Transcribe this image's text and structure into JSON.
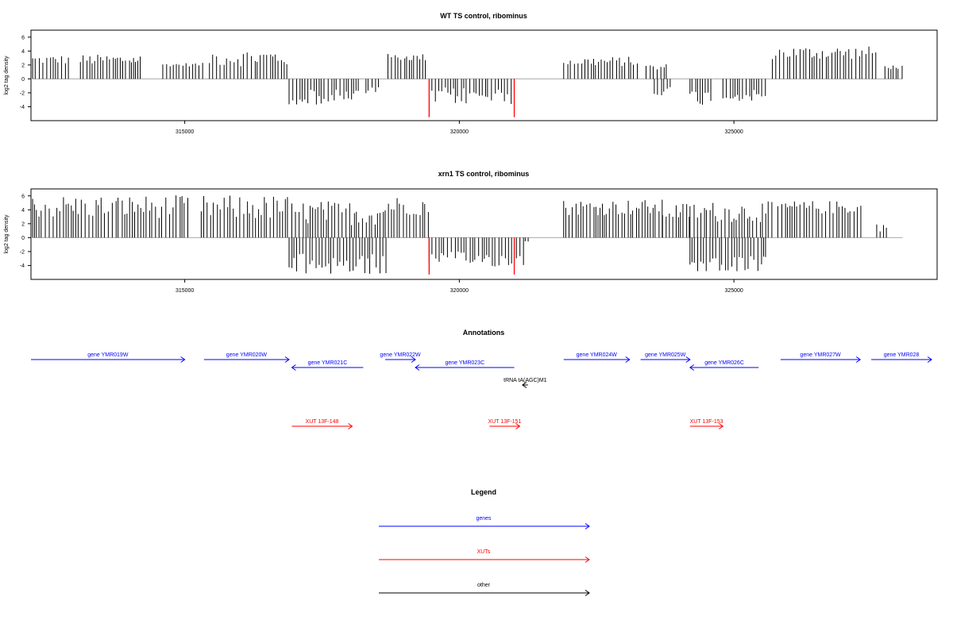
{
  "chart_data": [
    {
      "type": "bar",
      "title": "WT TS control, ribominus",
      "ylabel": "log2 tag density",
      "xlim": [
        312200,
        328700
      ],
      "ylim": [
        -6,
        7
      ],
      "yticks": [
        -4,
        -2,
        0,
        2,
        4,
        6
      ],
      "xticks": [
        315000,
        320000,
        325000
      ],
      "colors": {
        "bars": "#000000",
        "highlight": "#ff0000",
        "baseline": "#aaaaaa"
      },
      "plus_segments": [
        [
          312230,
          312900,
          2.1,
          3.4
        ],
        [
          313100,
          314200,
          2.0,
          3.5
        ],
        [
          314600,
          315350,
          1.8,
          2.3
        ],
        [
          315450,
          316900,
          1.8,
          4.3
        ],
        [
          318700,
          319450,
          2.6,
          3.6
        ],
        [
          321900,
          323300,
          1.8,
          3.2
        ],
        [
          323400,
          323800,
          1.0,
          2.2
        ],
        [
          325700,
          327600,
          2.8,
          4.7
        ],
        [
          327750,
          328100,
          1.4,
          2.0
        ]
      ],
      "minus_segments": [
        [
          316900,
          318200,
          -1.5,
          -3.7
        ],
        [
          318300,
          318550,
          -1.2,
          -2.2
        ],
        [
          319500,
          321000,
          -1.2,
          -3.7
        ],
        [
          323550,
          323900,
          -1.0,
          -2.4
        ],
        [
          324200,
          324600,
          -1.5,
          -3.8
        ],
        [
          324800,
          325600,
          -1.6,
          -3.2
        ]
      ],
      "highlight_bars": [
        [
          319450,
          -5.5
        ],
        [
          321000,
          -5.5
        ]
      ]
    },
    {
      "type": "bar",
      "title": "xrn1 TS control, ribominus",
      "ylabel": "log2 tag density",
      "xlim": [
        312200,
        328700
      ],
      "ylim": [
        -6,
        7
      ],
      "yticks": [
        -4,
        -2,
        0,
        2,
        4,
        6
      ],
      "xticks": [
        315000,
        320000,
        325000
      ],
      "colors": {
        "bars": "#000000",
        "highlight": "#ff0000",
        "baseline": "#aaaaaa"
      },
      "plus_segments": [
        [
          312230,
          315100,
          2.8,
          6.1
        ],
        [
          315300,
          316900,
          2.5,
          6.1
        ],
        [
          316950,
          318650,
          1.8,
          5.3
        ],
        [
          318650,
          319450,
          3.2,
          6.0
        ],
        [
          321900,
          323700,
          3.2,
          5.5
        ],
        [
          323700,
          324200,
          2.5,
          5.0
        ],
        [
          324200,
          325700,
          2.2,
          5.2
        ],
        [
          325800,
          327350,
          3.4,
          5.3
        ],
        [
          327600,
          327800,
          0.8,
          2.3
        ]
      ],
      "minus_segments": [
        [
          316900,
          318700,
          -2.3,
          -5.4
        ],
        [
          319450,
          321200,
          -2.0,
          -4.2
        ],
        [
          321200,
          321300,
          -0.4,
          -0.6
        ],
        [
          324200,
          325600,
          -2.6,
          -4.9
        ]
      ],
      "highlight_bars": [
        [
          319450,
          -5.3
        ],
        [
          321000,
          -5.3
        ]
      ]
    }
  ],
  "annotations": {
    "title": "Annotations",
    "items": [
      {
        "label": "gene YMR019W",
        "start": 312200,
        "end": 315000,
        "dir": "+",
        "row": 0,
        "color": "#0000ff"
      },
      {
        "label": "gene YMR020W",
        "start": 315350,
        "end": 316900,
        "dir": "+",
        "row": 0,
        "color": "#0000ff"
      },
      {
        "label": "gene YMR021C",
        "start": 316950,
        "end": 318250,
        "dir": "-",
        "row": 1,
        "color": "#0000ff"
      },
      {
        "label": "gene YMR022W",
        "start": 318650,
        "end": 319200,
        "dir": "+",
        "row": 0,
        "color": "#0000ff"
      },
      {
        "label": "gene YMR023C",
        "start": 319200,
        "end": 321000,
        "dir": "-",
        "row": 1,
        "color": "#0000ff"
      },
      {
        "label": "gene YMR024W",
        "start": 321900,
        "end": 323100,
        "dir": "+",
        "row": 0,
        "color": "#0000ff"
      },
      {
        "label": "gene YMR025W",
        "start": 323300,
        "end": 324200,
        "dir": "+",
        "row": 0,
        "color": "#0000ff"
      },
      {
        "label": "gene YMR026C",
        "start": 324200,
        "end": 325450,
        "dir": "-",
        "row": 1,
        "color": "#0000ff"
      },
      {
        "label": "gene YMR027W",
        "start": 325850,
        "end": 327300,
        "dir": "+",
        "row": 0,
        "color": "#0000ff"
      },
      {
        "label": "gene YMR028",
        "start": 327500,
        "end": 328600,
        "dir": "+",
        "row": 0,
        "color": "#0000ff",
        "clip": true
      },
      {
        "label": "tRNA tA(AGC)M1",
        "start": 321150,
        "end": 321250,
        "dir": "-",
        "row": 2,
        "color": "#000000"
      },
      {
        "label": "XUT 13F-148",
        "start": 316950,
        "end": 318050,
        "dir": "+",
        "row": 3,
        "color": "#ff0000"
      },
      {
        "label": "XUT 13F-151",
        "start": 320550,
        "end": 321100,
        "dir": "+",
        "row": 3,
        "color": "#ff0000"
      },
      {
        "label": "XUT 13F-153",
        "start": 324200,
        "end": 324800,
        "dir": "+",
        "row": 3,
        "color": "#ff0000"
      }
    ]
  },
  "legend": {
    "title": "Legend",
    "items": [
      {
        "label": "genes",
        "color": "#0000ff"
      },
      {
        "label": "XUTs",
        "color": "#ff0000"
      },
      {
        "label": "other",
        "color": "#000000"
      }
    ]
  }
}
